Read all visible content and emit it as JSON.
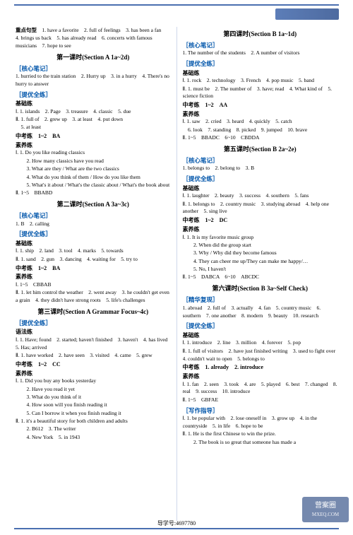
{
  "footer": "导学号:4697780",
  "watermark": {
    "line1": "营案圈",
    "line2": "MXEQ.COM"
  },
  "left": {
    "preamble_label": "重点句型",
    "preamble": "　1. have a favorite　2. full of feelings　3. has been a fan　4. brings us back　5. has already read　6. concerts with famous musicians　7. hope to see",
    "sec1": {
      "title": "第一课时(Section A 1a~2d)",
      "hexin_label": "核心笔记",
      "hexin": "1. hurried to the train station　2. Hurry up　3. in a hurry　4. There's no hurry to answer",
      "tiyou_label": "提优全练",
      "jichu_label": "基础练",
      "jichu": [
        "Ⅰ. 1. islands　2. Page　3. treasure　4. classic　5. due",
        "Ⅱ. 1. full of　2. grew up　3. at least　4. put down",
        "　5. at least"
      ],
      "zhongkao_label": "中考练",
      "zhongkao": "　1~2　BA",
      "suyang_label": "素养练",
      "suyang": [
        "Ⅰ. 1. Do you like reading classics",
        "　2. How many classics have you read",
        "　3. What are they / What are the two classics",
        "　4. What do you think of them / How do you like them",
        "　5. What's it about / What's the classic about / What's the book about",
        "Ⅱ. 1~5　BBABD"
      ]
    },
    "sec2": {
      "title": "第二课时(Section A 3a~3c)",
      "hexin_label": "核心笔记",
      "hexin": "1. B　2. calling",
      "tiyou_label": "提优全练",
      "jichu_label": "基础练",
      "jichu": [
        "Ⅰ. 1. ship　2. land　3. tool　4. marks　5. towards",
        "Ⅱ. 1. sand　2. gun　3. dancing　4. waiting for　5. try to"
      ],
      "zhongkao_label": "中考练",
      "zhongkao": "　1~2　BA",
      "suyang_label": "素养练",
      "suyang": [
        "Ⅰ. 1~5　CBBAB",
        "Ⅱ. 1. let him control the weather　2. went away　3. he couldn't get even a grain　4. they didn't have strong roots　5. life's challenges"
      ]
    },
    "sec3": {
      "title": "第三课时(Section A Grammar Focus~4c)",
      "tiyou_label": "提优全练",
      "yufa_label": "语法练",
      "yufa": [
        "Ⅰ. 1. Have; found　2. started; haven't finished　3. haven't　4. has lived　5. Has; arrived",
        "Ⅱ. 1. have worked　2. have seen　3. visited　4. came　5. grew"
      ],
      "zhongkao_label": "中考练",
      "zhongkao": "　1~2　CC",
      "suyang_label": "素养练",
      "suyang": [
        "Ⅰ. 1. Did you buy any books yesterday",
        "　2. Have you read it yet",
        "　3. What do you think of it",
        "　4. How soon will you finish reading it",
        "　5. Can I borrow it when you finish reading it",
        "Ⅱ. 1. it's a beautiful story for both children and adults",
        "　2. B612　3. The writer",
        "　4. New York　5. in 1943"
      ]
    }
  },
  "right": {
    "sec4": {
      "title": "第四课时(Section B 1a~1d)",
      "hexin_label": "核心笔记",
      "hexin": "1. The number of the students　2. A number of visitors",
      "tiyou_label": "提优全练",
      "jichu_label": "基础练",
      "jichu": [
        "Ⅰ. 1. rock　2. technology　3. French　4. pop music　5. band",
        "Ⅱ. 1. must be　2. The number of　3. have; read　4. What kind of　5. science fiction"
      ],
      "zhongkao_label": "中考练",
      "zhongkao": "　1~2　AA",
      "suyang_label": "素养练",
      "suyang": [
        "Ⅰ. 1. saw　2. cried　3. heard　4. quickly　5. catch",
        "　6. look　7. standing　8. picked　9. jumped　10. brave",
        "Ⅱ. 1~5　BBADC　6~10　CBDDA"
      ]
    },
    "sec5": {
      "title": "第五课时(Section B 2a~2e)",
      "hexin_label": "核心笔记",
      "hexin": "1. belongs to　2. belong to　3. B",
      "tiyou_label": "提优全练",
      "jichu_label": "基础练",
      "jichu": [
        "Ⅰ. 1. laughter　2. beauty　3. success　4. southern　5. fans",
        "Ⅱ. 1. belongs to　2. country music　3. studying abroad　4. help one another　5. sing live"
      ],
      "zhongkao_label": "中考练",
      "zhongkao": "　1~2　DC",
      "suyang_label": "素养练",
      "suyang": [
        "Ⅰ. 1. It is my favorite music group",
        "　2. When did the group start",
        "　3. Why / Why did they become famous",
        "　4. They can cheer me up/They can make me happy/…",
        "　5. No, I haven't",
        "Ⅱ. 1~5　DABCA　6~10　ABCDC"
      ]
    },
    "sec6": {
      "title": "第六课时(Section B 3a~Self Check)",
      "jinghua_label": "精华复现",
      "jinghua": "1. abroad　2. full of　3. actually　4. fan　5. country music　6. southern　7. one another　8. modern　9. beauty　10. research",
      "tiyou_label": "提优全练",
      "jichu_label": "基础练",
      "jichu": [
        "Ⅰ. 1. introduce　2. line　3. million　4. forever　5. pop",
        "Ⅱ. 1. full of visitors　2. have just finished writing　3. used to fight over　4. couldn't wait to open　5. belongs to"
      ],
      "zhongkao_label": "中考练",
      "zhongkao": "　1. already　2. introduce",
      "suyang_label": "素养练",
      "suyang": [
        "Ⅰ. 1. fan　2. seen　3. took　4. are　5. played　6. best　7. changed　8. real　9. success　10. introduce",
        "Ⅱ. 1~5　GBFAE"
      ],
      "xiezuo_label": "写作指导",
      "xiezuo": [
        "Ⅰ. 1. be popular with　2. lose oneself in　3. grow up　4. in the countryside　5. in life　6. hope to be",
        "Ⅱ. 1. He is the first Chinese to win the prize.",
        "　2. The book is so great that someone has made a"
      ]
    }
  }
}
